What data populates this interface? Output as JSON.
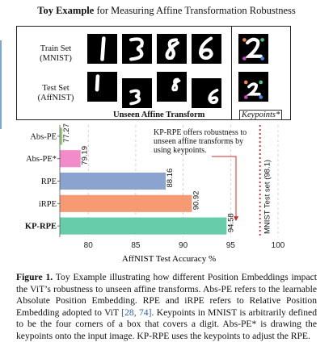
{
  "figure_title": {
    "bold": "Toy Example",
    "rest": " for Measuring Affine Transformation Robustness"
  },
  "panel": {
    "train_label": [
      "Train Set",
      "(MNIST)"
    ],
    "test_label": [
      "Test Set",
      "(AffNIST)"
    ],
    "unseen_caption": "Unseen Affine Transform",
    "keypoints_caption": "Keypoints*"
  },
  "chart_data": {
    "type": "bar",
    "orientation": "horizontal",
    "categories": [
      "Abs-PE",
      "Abs-PE*",
      "RPE",
      "iRPE",
      "KP-RPE"
    ],
    "values": [
      77.27,
      79.19,
      88.16,
      90.92,
      94.58
    ],
    "value_labels": [
      "77.27",
      "79.19",
      "88.16",
      "90.92",
      "94.58"
    ],
    "colors": [
      "#9ccc7f",
      "#f28cc8",
      "#8aa3cf",
      "#f59a73",
      "#66ccaa"
    ],
    "bold_categories": [
      "KP-RPE"
    ],
    "xlabel": "AffNIST Test Accuracy %",
    "xlim": [
      77,
      100
    ],
    "xticks": [
      80,
      85,
      90,
      95,
      100
    ],
    "reference_line": {
      "value": 98.1,
      "label": "MNIST Test set (98.1)",
      "color": "#d62728"
    },
    "annotation": [
      "KP-RPE offers robustness to",
      "unseen affine transforms by",
      "using keypoints."
    ],
    "grid": "vertical dashed"
  },
  "caption": {
    "label": "Figure 1.",
    "text_before_refs": " Toy Example illustrating how different Position Embeddings impact the ViT’s robustness to unseen affine transforms. Abs-PE refers to the learnable Absolute Position Embedding. RPE and iRPE refers to Relative Position Embedding adopted to ViT ",
    "refs": "[28, 74]",
    "text_after_refs": ". Keypoints in MNIST is arbitrarily defined to be the four corners of a box that covers a digit. Abs-PE* is drawing the keypoints onto the input image. KP-RPE uses the keypoints to adjust the RPE."
  }
}
